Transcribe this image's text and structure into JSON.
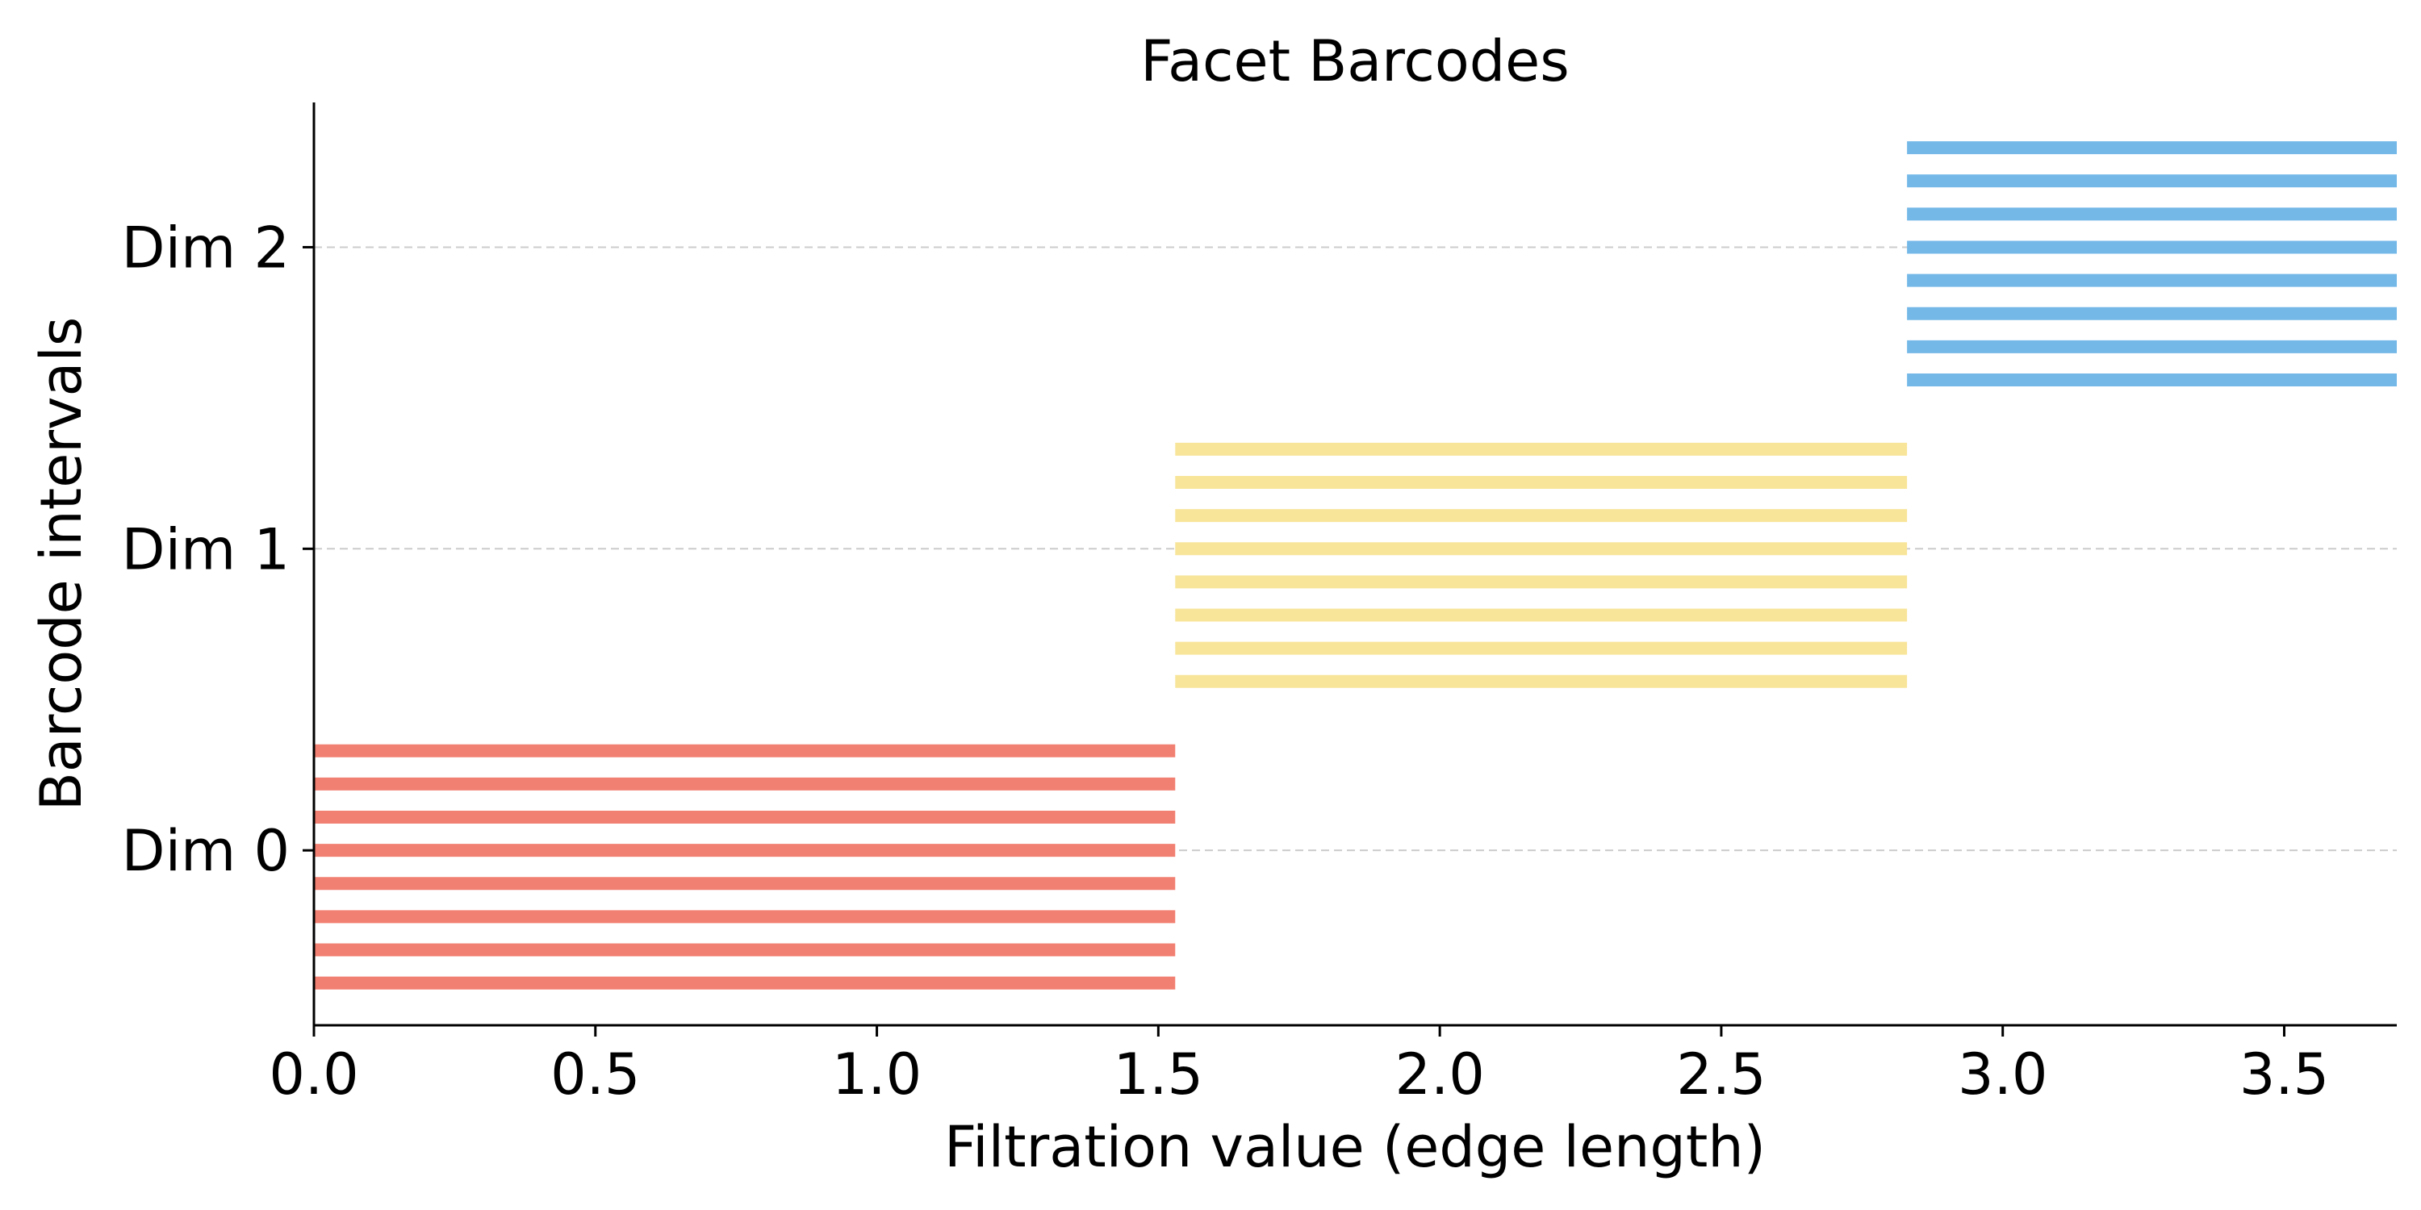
{
  "chart_data": {
    "type": "barcode",
    "title": "Facet Barcodes",
    "xlabel": "Filtration value (edge length)",
    "ylabel": "Barcode intervals",
    "xlim": [
      0,
      3.7
    ],
    "ylim": [
      -0.58,
      2.48
    ],
    "xticks": [
      0.0,
      0.5,
      1.0,
      1.5,
      2.0,
      2.5,
      3.0,
      3.5
    ],
    "xtick_labels": [
      "0.0",
      "0.5",
      "1.0",
      "1.5",
      "2.0",
      "2.5",
      "3.0",
      "3.5"
    ],
    "yticks": [
      0,
      1,
      2
    ],
    "ytick_labels": [
      "Dim 0",
      "Dim 1",
      "Dim 2"
    ],
    "grid": "horizontal dashed on y ticks",
    "series": [
      {
        "dimension": 0,
        "color": "#f28072",
        "intervals": [
          {
            "y": -0.44,
            "birth": 0.0,
            "death": 1.53
          },
          {
            "y": -0.33,
            "birth": 0.0,
            "death": 1.53
          },
          {
            "y": -0.22,
            "birth": 0.0,
            "death": 1.53
          },
          {
            "y": -0.11,
            "birth": 0.0,
            "death": 1.53
          },
          {
            "y": 0.0,
            "birth": 0.0,
            "death": 1.53
          },
          {
            "y": 0.11,
            "birth": 0.0,
            "death": 1.53
          },
          {
            "y": 0.22,
            "birth": 0.0,
            "death": 1.53
          },
          {
            "y": 0.33,
            "birth": 0.0,
            "death": 1.53
          }
        ]
      },
      {
        "dimension": 1,
        "color": "#f8e59a",
        "intervals": [
          {
            "y": 0.56,
            "birth": 1.53,
            "death": 2.83
          },
          {
            "y": 0.67,
            "birth": 1.53,
            "death": 2.83
          },
          {
            "y": 0.78,
            "birth": 1.53,
            "death": 2.83
          },
          {
            "y": 0.89,
            "birth": 1.53,
            "death": 2.83
          },
          {
            "y": 1.0,
            "birth": 1.53,
            "death": 2.83
          },
          {
            "y": 1.11,
            "birth": 1.53,
            "death": 2.83
          },
          {
            "y": 1.22,
            "birth": 1.53,
            "death": 2.83
          },
          {
            "y": 1.33,
            "birth": 1.53,
            "death": 2.83
          }
        ]
      },
      {
        "dimension": 2,
        "color": "#74b8e8",
        "intervals": [
          {
            "y": 1.56,
            "birth": 2.83,
            "death": 3.7
          },
          {
            "y": 1.67,
            "birth": 2.83,
            "death": 3.7
          },
          {
            "y": 1.78,
            "birth": 2.83,
            "death": 3.7
          },
          {
            "y": 1.89,
            "birth": 2.83,
            "death": 3.7
          },
          {
            "y": 2.0,
            "birth": 2.83,
            "death": 3.7
          },
          {
            "y": 2.11,
            "birth": 2.83,
            "death": 3.7
          },
          {
            "y": 2.22,
            "birth": 2.83,
            "death": 3.7
          },
          {
            "y": 2.33,
            "birth": 2.83,
            "death": 3.7
          }
        ]
      }
    ]
  }
}
